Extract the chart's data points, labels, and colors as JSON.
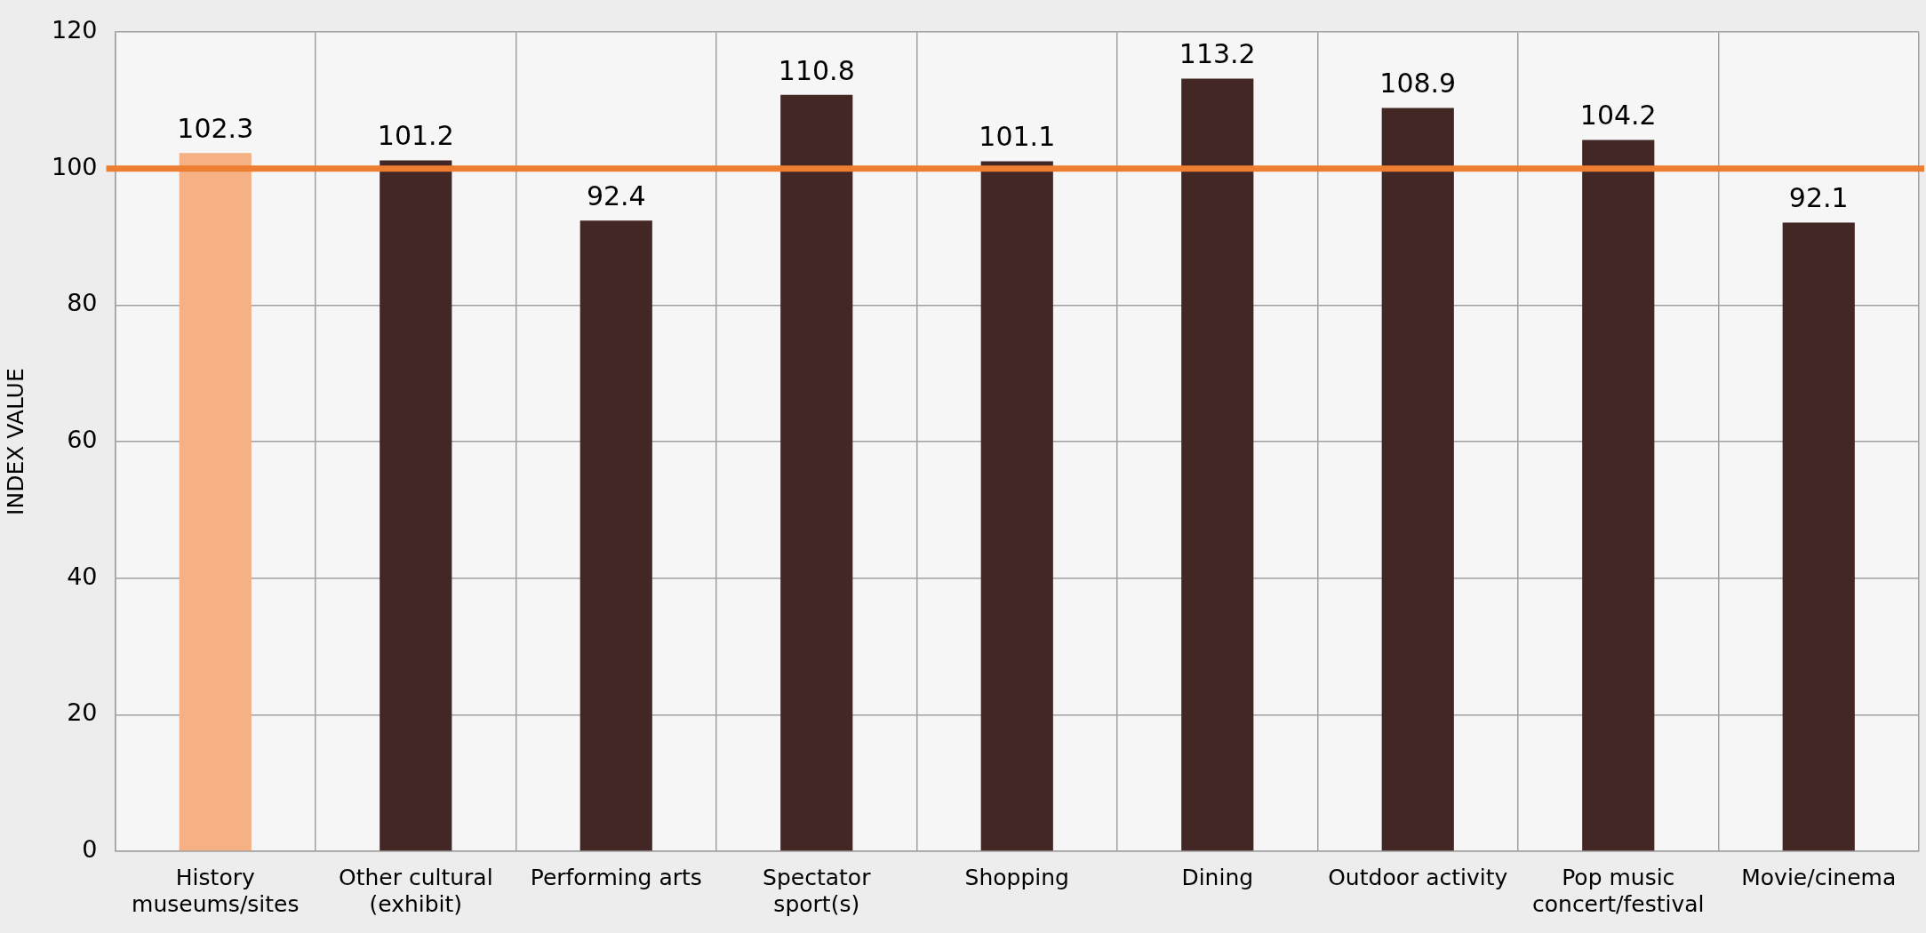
{
  "chart_data": {
    "type": "bar",
    "ylabel": "INDEX VALUE",
    "categories": [
      "History museums/sites",
      "Other cultural (exhibit)",
      "Performing arts",
      "Spectator sport(s)",
      "Shopping",
      "Dining",
      "Outdoor activity",
      "Pop music concert/festival",
      "Movie/cinema"
    ],
    "values": [
      102.3,
      101.2,
      92.4,
      110.8,
      101.1,
      113.2,
      108.9,
      104.2,
      92.1
    ],
    "colors": [
      "#f5b183",
      "#432725",
      "#432725",
      "#432725",
      "#432725",
      "#432725",
      "#432725",
      "#432725",
      "#432725"
    ],
    "ylim": [
      0,
      120
    ],
    "yticks": [
      0,
      20,
      40,
      60,
      80,
      100,
      120
    ],
    "grid": true,
    "data_labels": true,
    "ref_lines": [
      {
        "axis": "y",
        "value": 100,
        "color": "#ed7d31"
      }
    ]
  }
}
